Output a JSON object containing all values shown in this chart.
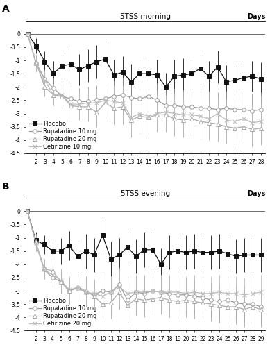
{
  "panel_A": {
    "title": "5TSS morning",
    "days_label": "Days",
    "xlim_min": 1.0,
    "xlim_max": 28.5,
    "ylim": [
      -4.5,
      0.5
    ],
    "yticks": [
      0,
      -0.5,
      -1,
      -1.5,
      -2,
      -2.5,
      -3,
      -3.5,
      -4,
      -4.5
    ],
    "xticks": [
      2,
      3,
      4,
      5,
      6,
      7,
      8,
      9,
      10,
      11,
      12,
      13,
      14,
      15,
      16,
      17,
      18,
      19,
      20,
      21,
      22,
      23,
      24,
      25,
      26,
      27,
      28
    ],
    "series": {
      "Placebo": {
        "x": [
          1,
          2,
          3,
          4,
          5,
          6,
          7,
          8,
          9,
          10,
          11,
          12,
          13,
          14,
          15,
          16,
          17,
          18,
          19,
          20,
          21,
          22,
          23,
          24,
          25,
          26,
          27,
          28
        ],
        "y": [
          0,
          -0.45,
          -1.05,
          -1.5,
          -1.2,
          -1.15,
          -1.35,
          -1.2,
          -1.05,
          -0.95,
          -1.55,
          -1.45,
          -1.8,
          -1.5,
          -1.5,
          -1.55,
          -2.0,
          -1.6,
          -1.55,
          -1.5,
          -1.3,
          -1.6,
          -1.25,
          -1.8,
          -1.75,
          -1.65,
          -1.6,
          -1.7
        ],
        "yerr": [
          0.0,
          0.28,
          0.38,
          0.48,
          0.52,
          0.62,
          0.58,
          0.62,
          0.62,
          0.68,
          0.58,
          0.62,
          0.68,
          0.62,
          0.62,
          0.58,
          0.52,
          0.62,
          0.62,
          0.62,
          0.62,
          0.58,
          0.62,
          0.62,
          0.58,
          0.62,
          0.58,
          0.62
        ],
        "marker": "s",
        "color": "#111111",
        "mfc": "#111111",
        "mec": "#111111",
        "ms": 4.5,
        "lw": 0.9
      },
      "Rupatadine 10 mg": {
        "x": [
          1,
          2,
          3,
          4,
          5,
          6,
          7,
          8,
          9,
          10,
          11,
          12,
          13,
          14,
          15,
          16,
          17,
          18,
          19,
          20,
          21,
          22,
          23,
          24,
          25,
          26,
          27,
          28
        ],
        "y": [
          0,
          -1.1,
          -1.7,
          -2.05,
          -2.35,
          -2.45,
          -2.55,
          -2.55,
          -2.5,
          -2.45,
          -2.35,
          -2.3,
          -2.4,
          -2.45,
          -2.35,
          -2.5,
          -2.7,
          -2.7,
          -2.75,
          -2.75,
          -2.8,
          -2.8,
          -2.85,
          -2.8,
          -2.85,
          -2.85,
          -2.9,
          -2.85
        ],
        "yerr": [
          0.0,
          0.3,
          0.35,
          0.4,
          0.45,
          0.5,
          0.5,
          0.55,
          0.55,
          0.6,
          0.6,
          0.65,
          0.65,
          0.65,
          0.65,
          0.65,
          0.65,
          0.65,
          0.65,
          0.65,
          0.65,
          0.65,
          0.65,
          0.65,
          0.65,
          0.65,
          0.65,
          0.65
        ],
        "marker": "o",
        "color": "#999999",
        "mfc": "white",
        "mec": "#999999",
        "ms": 4,
        "lw": 0.9
      },
      "Rupatadine 20 mg": {
        "x": [
          1,
          2,
          3,
          4,
          5,
          6,
          7,
          8,
          9,
          10,
          11,
          12,
          13,
          14,
          15,
          16,
          17,
          18,
          19,
          20,
          21,
          22,
          23,
          24,
          25,
          26,
          27,
          28
        ],
        "y": [
          0,
          -1.1,
          -2.0,
          -2.3,
          -2.35,
          -2.7,
          -2.75,
          -2.75,
          -2.95,
          -2.6,
          -2.8,
          -2.75,
          -3.25,
          -3.1,
          -3.15,
          -3.05,
          -3.05,
          -3.2,
          -3.25,
          -3.2,
          -3.3,
          -3.35,
          -3.4,
          -3.5,
          -3.55,
          -3.5,
          -3.6,
          -3.55
        ],
        "yerr": [
          0.0,
          0.3,
          0.35,
          0.4,
          0.45,
          0.5,
          0.5,
          0.55,
          0.55,
          0.6,
          0.6,
          0.65,
          0.65,
          0.65,
          0.65,
          0.65,
          0.65,
          0.65,
          0.65,
          0.65,
          0.65,
          0.65,
          0.65,
          0.65,
          0.65,
          0.65,
          0.65,
          0.65
        ],
        "marker": "^",
        "color": "#aaaaaa",
        "mfc": "white",
        "mec": "#aaaaaa",
        "ms": 4,
        "lw": 0.9
      },
      "Cetirizine 10 mg": {
        "x": [
          1,
          2,
          3,
          4,
          5,
          6,
          7,
          8,
          9,
          10,
          11,
          12,
          13,
          14,
          15,
          16,
          17,
          18,
          19,
          20,
          21,
          22,
          23,
          24,
          25,
          26,
          27,
          28
        ],
        "y": [
          0,
          -1.15,
          -1.75,
          -2.3,
          -2.3,
          -2.65,
          -2.65,
          -2.6,
          -2.6,
          -2.5,
          -2.55,
          -2.6,
          -3.15,
          -3.0,
          -3.1,
          -3.0,
          -2.95,
          -3.0,
          -3.05,
          -3.05,
          -3.1,
          -3.2,
          -3.0,
          -3.25,
          -3.3,
          -3.2,
          -3.35,
          -3.3
        ],
        "yerr": [
          0.0,
          0.3,
          0.35,
          0.4,
          0.45,
          0.5,
          0.5,
          0.55,
          0.55,
          0.6,
          0.6,
          0.65,
          0.65,
          0.65,
          0.65,
          0.65,
          0.65,
          0.65,
          0.65,
          0.65,
          0.65,
          0.65,
          0.65,
          0.65,
          0.65,
          0.65,
          0.65,
          0.65
        ],
        "marker": "x",
        "color": "#bbbbbb",
        "mfc": "#bbbbbb",
        "mec": "#bbbbbb",
        "ms": 4,
        "lw": 0.9
      }
    }
  },
  "panel_B": {
    "title": "5TSS evening",
    "days_label": "Days",
    "xlim_min": 1.0,
    "xlim_max": 29.5,
    "ylim": [
      -4.5,
      0.5
    ],
    "yticks": [
      0,
      -0.5,
      -1,
      -1.5,
      -2,
      -2.5,
      -3,
      -3.5,
      -4,
      -4.5
    ],
    "xticks": [
      2,
      3,
      4,
      5,
      6,
      7,
      8,
      9,
      10,
      11,
      12,
      13,
      14,
      15,
      16,
      17,
      18,
      19,
      20,
      21,
      22,
      23,
      24,
      25,
      26,
      27,
      28,
      29
    ],
    "series": {
      "Placebo": {
        "x": [
          1,
          2,
          3,
          4,
          5,
          6,
          7,
          8,
          9,
          10,
          11,
          12,
          13,
          14,
          15,
          16,
          17,
          18,
          19,
          20,
          21,
          22,
          23,
          24,
          25,
          26,
          27,
          28,
          29
        ],
        "y": [
          0,
          -1.1,
          -1.25,
          -1.5,
          -1.5,
          -1.3,
          -1.7,
          -1.5,
          -1.65,
          -0.9,
          -1.8,
          -1.65,
          -1.35,
          -1.7,
          -1.45,
          -1.45,
          -2.0,
          -1.55,
          -1.5,
          -1.55,
          -1.5,
          -1.55,
          -1.55,
          -1.5,
          -1.6,
          -1.7,
          -1.65,
          -1.65,
          -1.65
        ],
        "yerr": [
          0.0,
          0.3,
          0.35,
          0.45,
          0.5,
          0.55,
          0.6,
          0.65,
          0.65,
          0.7,
          0.65,
          0.65,
          0.7,
          0.65,
          0.65,
          0.65,
          0.6,
          0.65,
          0.65,
          0.65,
          0.65,
          0.65,
          0.65,
          0.65,
          0.65,
          0.65,
          0.65,
          0.65,
          0.65
        ],
        "marker": "s",
        "color": "#111111",
        "mfc": "#111111",
        "mec": "#111111",
        "ms": 4.5,
        "lw": 0.9
      },
      "Rupatadine 10 mg": {
        "x": [
          1,
          2,
          3,
          4,
          5,
          6,
          7,
          8,
          9,
          10,
          11,
          12,
          13,
          14,
          15,
          16,
          17,
          18,
          19,
          20,
          21,
          22,
          23,
          24,
          25,
          26,
          27,
          28,
          29
        ],
        "y": [
          0,
          -1.2,
          -2.2,
          -2.5,
          -2.65,
          -3.0,
          -2.9,
          -3.05,
          -3.15,
          -3.0,
          -3.05,
          -2.75,
          -3.35,
          -3.05,
          -3.1,
          -3.0,
          -3.05,
          -3.1,
          -3.15,
          -3.15,
          -3.2,
          -3.25,
          -3.35,
          -3.4,
          -3.35,
          -3.45,
          -3.5,
          -3.5,
          -3.6
        ],
        "yerr": [
          0.0,
          0.3,
          0.35,
          0.4,
          0.45,
          0.5,
          0.5,
          0.55,
          0.55,
          0.6,
          0.6,
          0.65,
          0.65,
          0.65,
          0.65,
          0.65,
          0.65,
          0.65,
          0.65,
          0.65,
          0.65,
          0.65,
          0.65,
          0.65,
          0.65,
          0.65,
          0.65,
          0.65,
          0.65
        ],
        "marker": "o",
        "color": "#999999",
        "mfc": "white",
        "mec": "#999999",
        "ms": 4,
        "lw": 0.9
      },
      "Rupatadine 20 mg": {
        "x": [
          1,
          2,
          3,
          4,
          5,
          6,
          7,
          8,
          9,
          10,
          11,
          12,
          13,
          14,
          15,
          16,
          17,
          18,
          19,
          20,
          21,
          22,
          23,
          24,
          25,
          26,
          27,
          28,
          29
        ],
        "y": [
          0,
          -1.15,
          -2.15,
          -2.25,
          -2.65,
          -3.0,
          -2.85,
          -3.0,
          -3.2,
          -3.5,
          -3.45,
          -3.05,
          -3.55,
          -3.3,
          -3.35,
          -3.3,
          -3.25,
          -3.35,
          -3.4,
          -3.35,
          -3.4,
          -3.45,
          -3.5,
          -3.55,
          -3.6,
          -3.6,
          -3.7,
          -3.6,
          -3.7
        ],
        "yerr": [
          0.0,
          0.3,
          0.35,
          0.4,
          0.45,
          0.5,
          0.5,
          0.55,
          0.55,
          0.6,
          0.6,
          0.65,
          0.65,
          0.65,
          0.65,
          0.65,
          0.65,
          0.65,
          0.65,
          0.65,
          0.65,
          0.65,
          0.65,
          0.65,
          0.65,
          0.65,
          0.65,
          0.65,
          0.65
        ],
        "marker": "^",
        "color": "#aaaaaa",
        "mfc": "white",
        "mec": "#aaaaaa",
        "ms": 4,
        "lw": 0.9
      },
      "Cetirizine 20 mg": {
        "x": [
          1,
          2,
          3,
          4,
          5,
          6,
          7,
          8,
          9,
          10,
          11,
          12,
          13,
          14,
          15,
          16,
          17,
          18,
          19,
          20,
          21,
          22,
          23,
          24,
          25,
          26,
          27,
          28,
          29
        ],
        "y": [
          0,
          -1.2,
          -2.2,
          -2.4,
          -2.6,
          -2.95,
          -2.9,
          -3.05,
          -3.1,
          -3.2,
          -3.05,
          -2.85,
          -3.1,
          -3.05,
          -3.05,
          -3.0,
          -3.05,
          -3.05,
          -3.05,
          -3.1,
          -3.05,
          -3.1,
          -3.1,
          -3.05,
          -3.1,
          -3.1,
          -3.15,
          -3.1,
          -3.05
        ],
        "yerr": [
          0.0,
          0.3,
          0.35,
          0.4,
          0.45,
          0.5,
          0.5,
          0.55,
          0.55,
          0.6,
          0.6,
          0.65,
          0.65,
          0.65,
          0.65,
          0.65,
          0.65,
          0.65,
          0.65,
          0.65,
          0.65,
          0.65,
          0.65,
          0.65,
          0.65,
          0.65,
          0.65,
          0.65,
          0.65
        ],
        "marker": "x",
        "color": "#bbbbbb",
        "mfc": "#bbbbbb",
        "mec": "#bbbbbb",
        "ms": 4,
        "lw": 0.9
      }
    }
  },
  "legend_fontsize": 6.0,
  "title_fontsize": 7.5,
  "tick_fontsize": 5.5,
  "days_fontsize": 7.0,
  "label_fontsize": 10,
  "label_A": "A",
  "label_B": "B"
}
